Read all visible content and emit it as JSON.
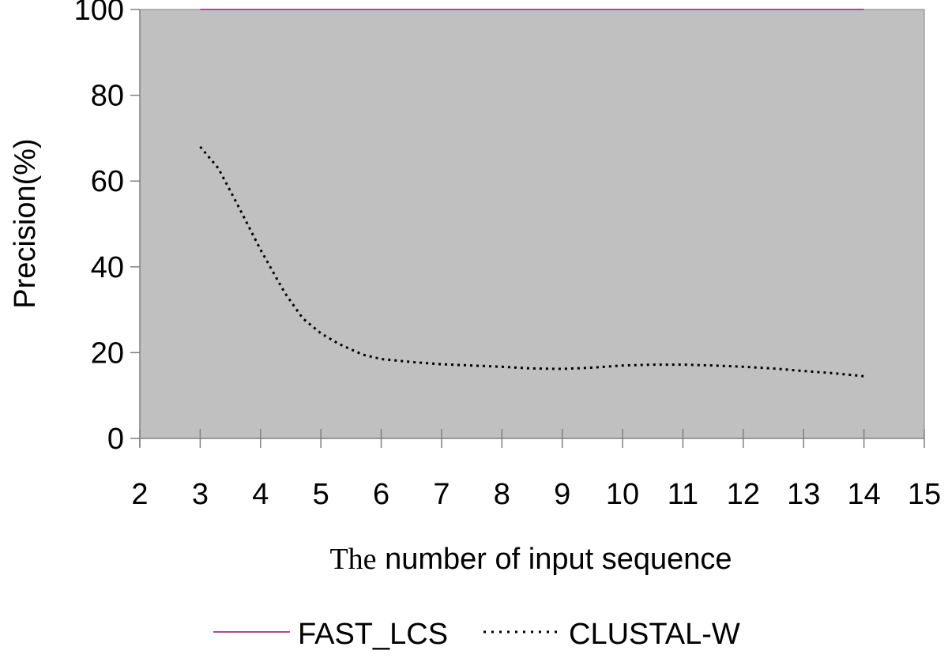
{
  "chart_data": {
    "type": "line",
    "xlabel_prefix": "The",
    "xlabel_rest": " number of input sequence",
    "ylabel": "Precision(%)",
    "xlim": [
      2,
      15
    ],
    "ylim": [
      0,
      100
    ],
    "x_ticks": [
      2,
      3,
      4,
      5,
      6,
      7,
      8,
      9,
      10,
      11,
      12,
      13,
      14,
      15
    ],
    "y_ticks": [
      0,
      20,
      40,
      60,
      80,
      100
    ],
    "grid": false,
    "plot_background": "#C0C0C0",
    "legend_position": "bottom",
    "series": [
      {
        "name": "FAST_LCS",
        "color": "#B0479B",
        "style": "solid",
        "x": [
          3,
          4,
          5,
          6,
          7,
          8,
          9,
          10,
          11,
          12,
          13,
          14
        ],
        "y": [
          100,
          100,
          100,
          100,
          100,
          100,
          100,
          100,
          100,
          100,
          100,
          100
        ]
      },
      {
        "name": "CLUSTAL-W",
        "color": "#000000",
        "style": "dotted",
        "x": [
          3,
          3.3,
          3.6,
          4,
          4.4,
          4.7,
          5,
          5.3,
          5.7,
          6,
          6.5,
          7,
          7.5,
          8,
          8.5,
          9,
          9.5,
          10,
          10.5,
          11,
          11.5,
          12,
          12.5,
          13,
          13.5,
          14
        ],
        "y": [
          68,
          63,
          55,
          44,
          34,
          28,
          24.5,
          22,
          19.5,
          18.5,
          17.8,
          17.3,
          17,
          16.7,
          16.3,
          16.2,
          16.5,
          17,
          17.2,
          17.2,
          17,
          16.7,
          16.3,
          15.7,
          15.2,
          14.5
        ]
      }
    ]
  }
}
